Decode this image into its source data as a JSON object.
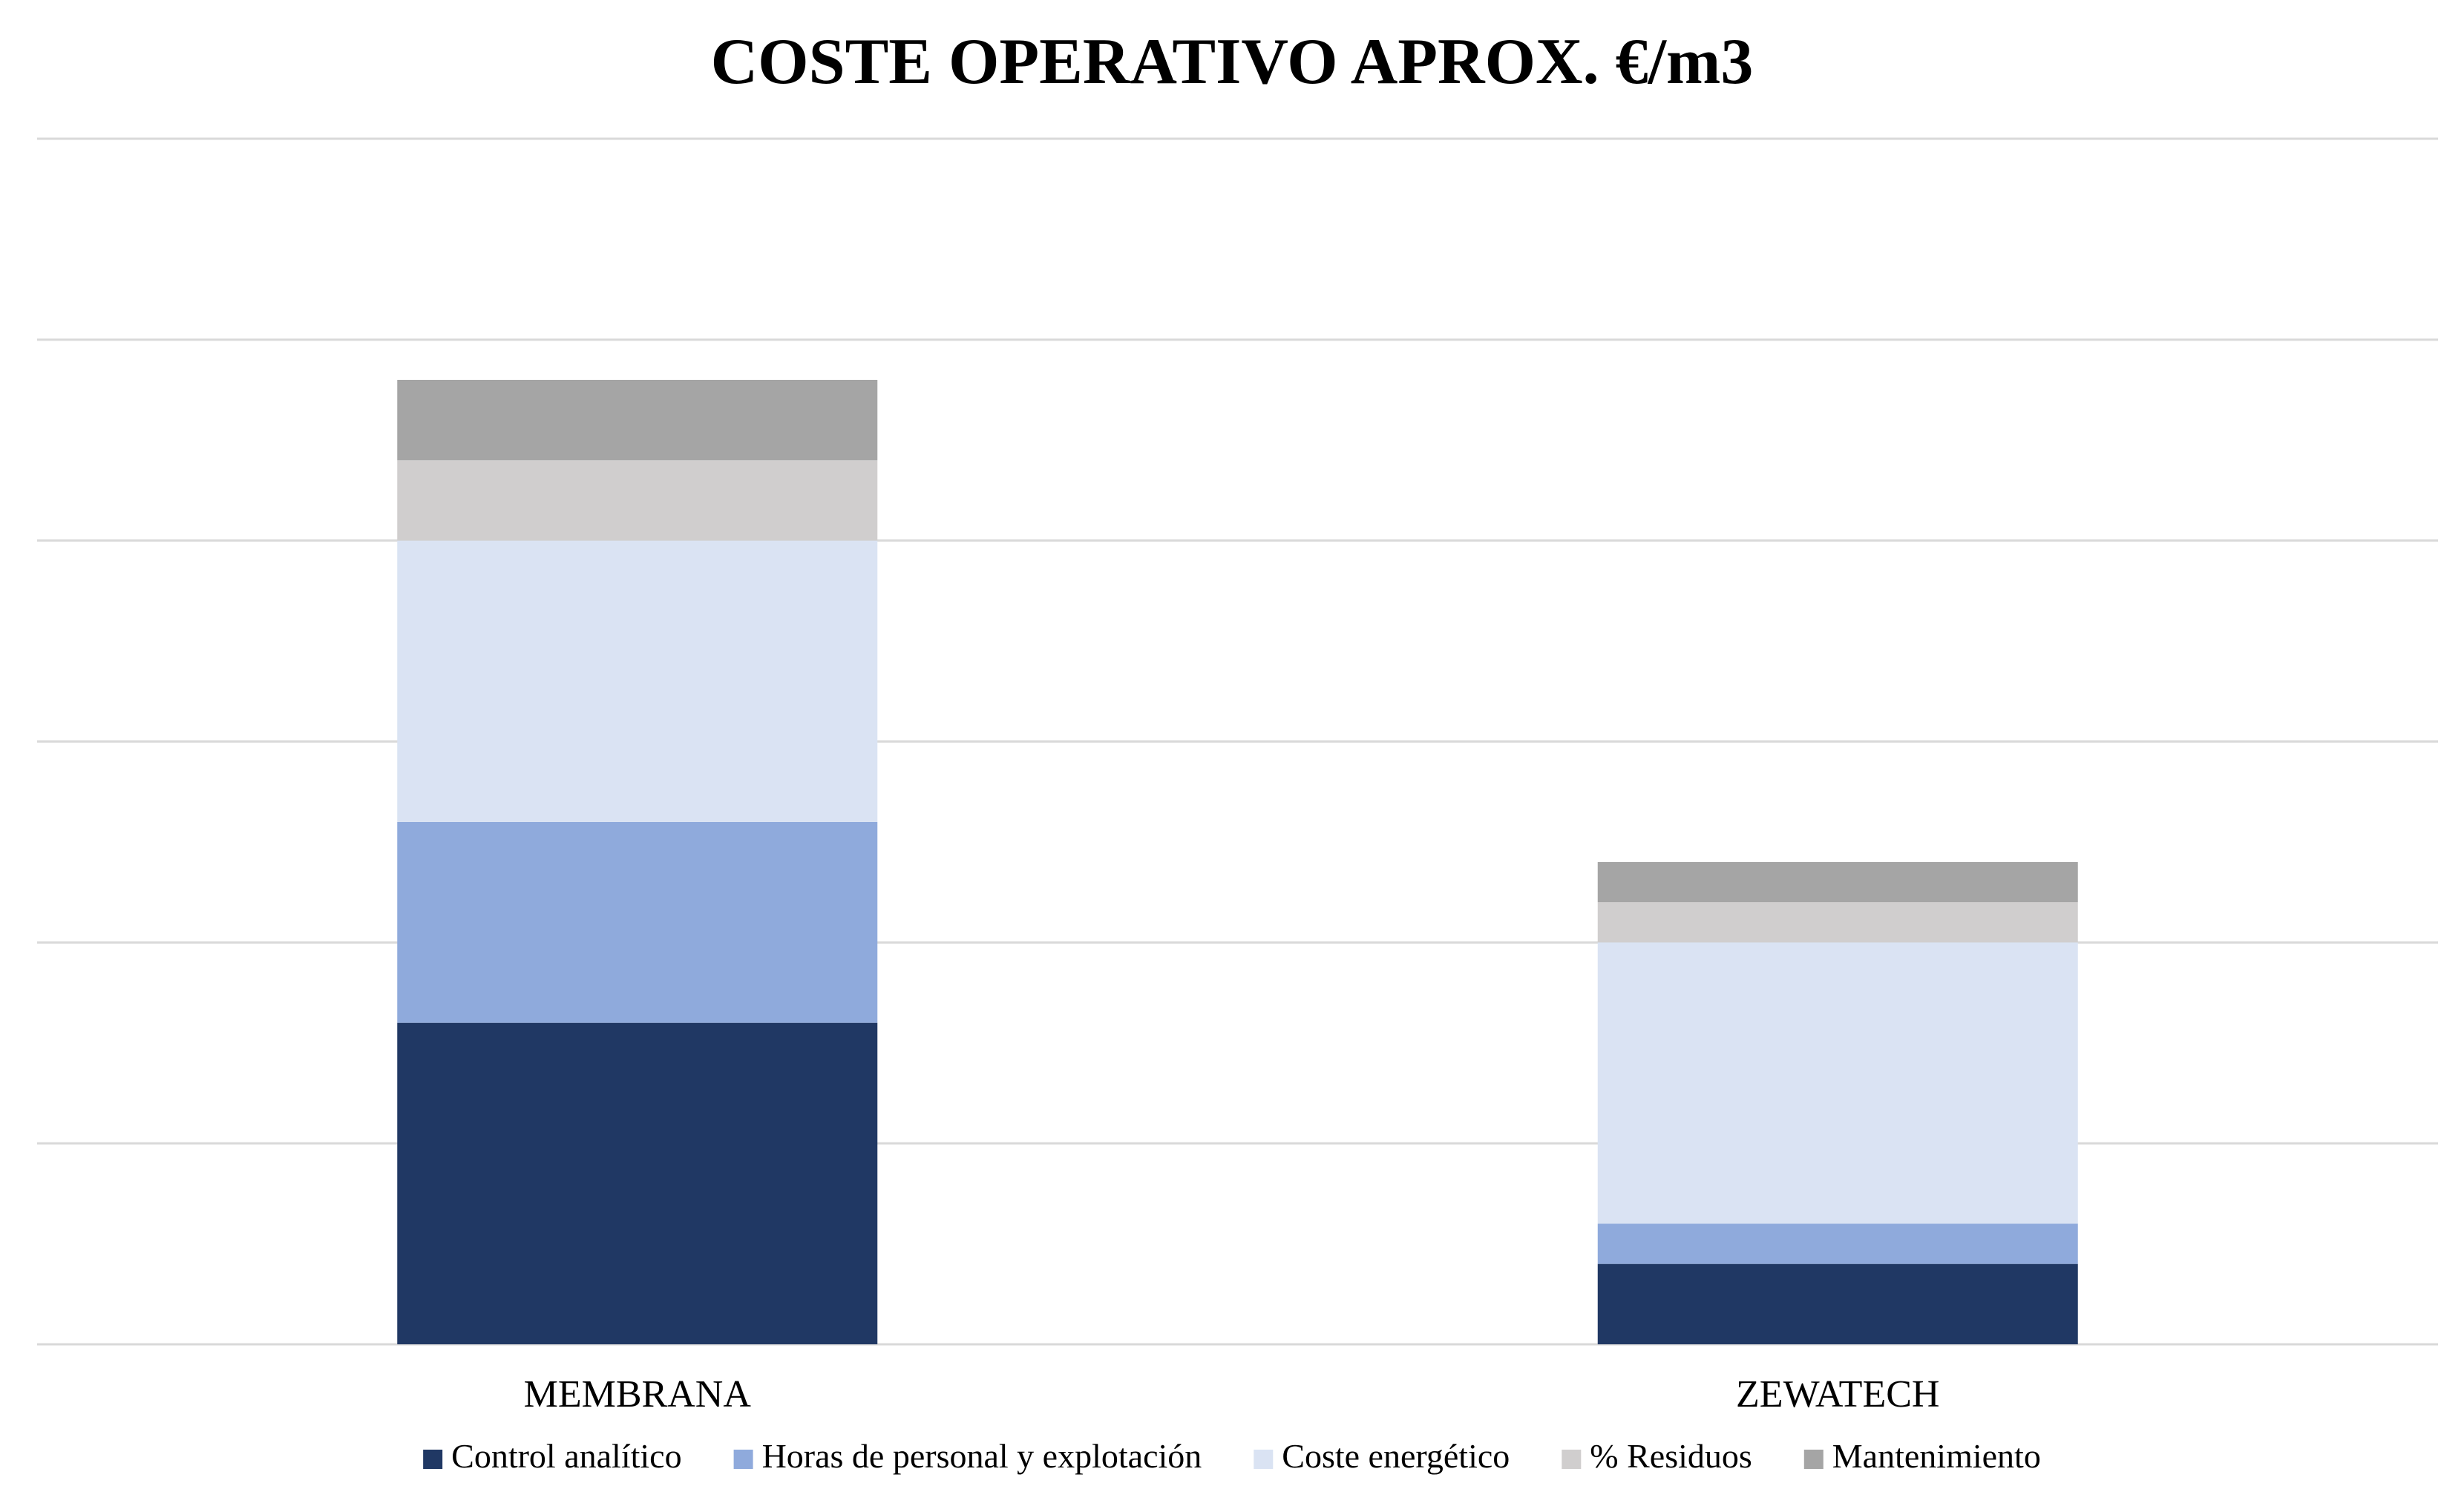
{
  "chart_data": {
    "type": "bar",
    "stacked": true,
    "title": "COSTE OPERATIVO APROX. €/m3",
    "xlabel": "",
    "ylabel": "",
    "ylim": [
      0,
      6
    ],
    "grid": true,
    "legend_position": "bottom",
    "categories": [
      "MEMBRANA",
      "ZEWATECH"
    ],
    "series": [
      {
        "name": "Control analítico",
        "color": "#203864",
        "values": [
          1.6,
          0.4
        ]
      },
      {
        "name": "Horas de personal y explotación",
        "color": "#8faadc",
        "values": [
          1.0,
          0.2
        ]
      },
      {
        "name": "Coste energético",
        "color": "#dae3f3",
        "values": [
          1.4,
          1.4
        ]
      },
      {
        "name": "% Residuos",
        "color": "#d0cece",
        "values": [
          0.4,
          0.2
        ]
      },
      {
        "name": "Mantenimiento",
        "color": "#a5a5a5",
        "values": [
          0.4,
          0.2
        ]
      }
    ]
  }
}
